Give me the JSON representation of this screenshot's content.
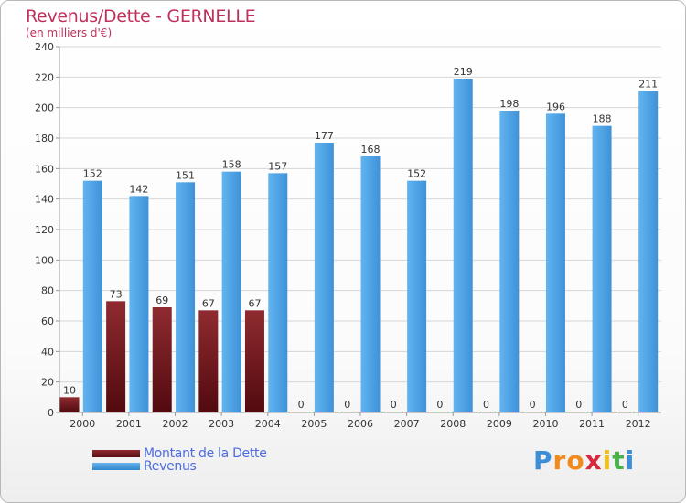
{
  "title": "Revenus/Dette - GERNELLE",
  "subtitle": "(en milliers d'€)",
  "colors": {
    "title": "#c0305b",
    "dette": "#7a1d22",
    "revenus": "#4da1e3",
    "legend_text": "#4d6be0",
    "grid": "#d6d6d6",
    "axis_text": "#333333"
  },
  "chart_data": {
    "type": "bar",
    "title": "Revenus/Dette - GERNELLE",
    "subtitle": "(en milliers d'€)",
    "categories": [
      "2000",
      "2001",
      "2002",
      "2003",
      "2004",
      "2005",
      "2006",
      "2007",
      "2008",
      "2009",
      "2010",
      "2011",
      "2012"
    ],
    "series": [
      {
        "name": "Montant de la Dette",
        "values": [
          10,
          73,
          69,
          67,
          67,
          0,
          0,
          0,
          0,
          0,
          0,
          0,
          0
        ]
      },
      {
        "name": "Revenus",
        "values": [
          152,
          142,
          151,
          158,
          157,
          177,
          168,
          152,
          219,
          198,
          196,
          188,
          211
        ]
      }
    ],
    "ylim": [
      0,
      240
    ],
    "yticks": [
      0,
      20,
      40,
      60,
      80,
      100,
      120,
      140,
      160,
      180,
      200,
      220,
      240
    ],
    "grid": true,
    "legend": "bottom-left"
  },
  "legend": {
    "items": [
      {
        "label": "Montant de la Dette",
        "color": "#7a1d22"
      },
      {
        "label": "Revenus",
        "color": "#4da1e3"
      }
    ]
  },
  "logo": {
    "letters": [
      "P",
      "r",
      "o",
      "x",
      "i",
      "t",
      "i"
    ],
    "colors": [
      "#3a8fd6",
      "#f08a1c",
      "#f08a1c",
      "#d8283c",
      "#f0c020",
      "#4ab24a",
      "#3a8fd6"
    ]
  }
}
